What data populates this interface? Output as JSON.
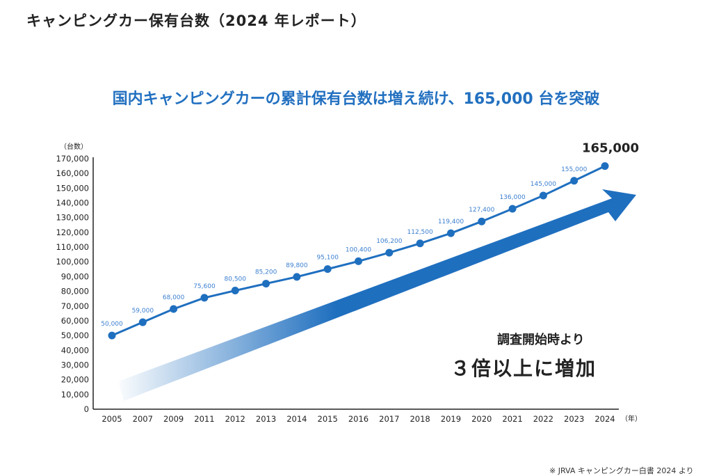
{
  "header": {
    "title": "キャンピングカー保有台数（2024 年レポート）"
  },
  "subtitle": "国内キャンピングカーの累計保有台数は増え続け、165,000 台を突破",
  "annotation": {
    "line1": "調査開始時より",
    "line2": "３倍以上に増加"
  },
  "footnote": "※ JRVA キャンピングカー白書 2024 より",
  "colors": {
    "line": "#1f6fbf",
    "label": "#3b7fd0",
    "arrow": "#1f6fbf"
  },
  "chart_data": {
    "type": "line",
    "title": "国内キャンピングカーの累計保有台数は増え続け、165,000 台を突破",
    "ylabel": "（台数）",
    "xlabel": "（年）",
    "ylim": [
      0,
      170000
    ],
    "yticks": [
      "0",
      "10,000",
      "20,000",
      "30,000",
      "40,000",
      "50,000",
      "60,000",
      "70,000",
      "80,000",
      "90,000",
      "100,000",
      "110,000",
      "120,000",
      "130,000",
      "140,000",
      "150,000",
      "160,000",
      "170,000"
    ],
    "categories": [
      "2005",
      "2007",
      "2009",
      "2011",
      "2012",
      "2013",
      "2014",
      "2015",
      "2016",
      "2017",
      "2018",
      "2019",
      "2020",
      "2021",
      "2022",
      "2023",
      "2024"
    ],
    "values": [
      50000,
      59000,
      68000,
      75600,
      80500,
      85200,
      89800,
      95100,
      100400,
      106200,
      112500,
      119400,
      127400,
      136000,
      145000,
      155000,
      165000
    ],
    "labels": [
      "50,000",
      "59,000",
      "68,000",
      "75,600",
      "80,500",
      "85,200",
      "89,800",
      "95,100",
      "100,400",
      "106,200",
      "112,500",
      "119,400",
      "127,400",
      "136,000",
      "145,000",
      "155,000",
      "165,000"
    ]
  }
}
